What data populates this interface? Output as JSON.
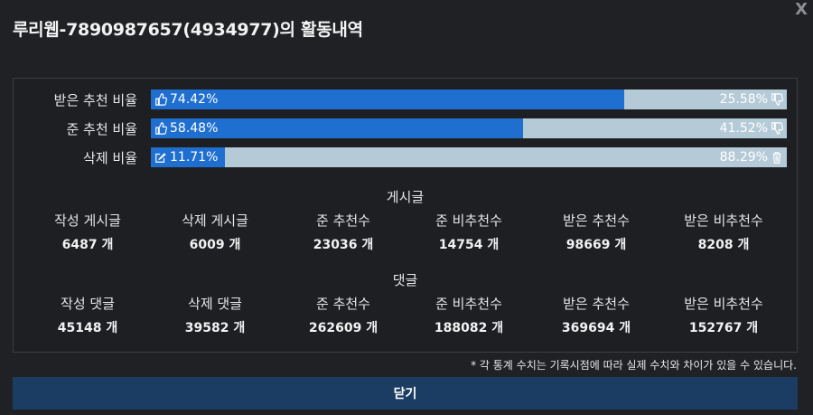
{
  "title": "루리웹-7890987657(4934977)의 활동내역",
  "close_label": "X",
  "ratios": [
    {
      "label": "받은 추천 비율",
      "left_text": "74.42%",
      "right_text": "25.58%",
      "fill_percent": 74.42,
      "left_icon": "thumbs-up-icon",
      "right_icon": "thumbs-down-icon"
    },
    {
      "label": "준 추천 비율",
      "left_text": "58.48%",
      "right_text": "41.52%",
      "fill_percent": 58.48,
      "left_icon": "thumbs-up-icon",
      "right_icon": "thumbs-down-icon"
    },
    {
      "label": "삭제 비율",
      "left_text": "11.71%",
      "right_text": "88.29%",
      "fill_percent": 11.71,
      "left_icon": "edit-icon",
      "right_icon": "trash-icon"
    }
  ],
  "posts": {
    "title": "게시글",
    "stats": [
      {
        "label": "작성 게시글",
        "value": "6487 개"
      },
      {
        "label": "삭제 게시글",
        "value": "6009 개"
      },
      {
        "label": "준 추천수",
        "value": "23036 개"
      },
      {
        "label": "준 비추천수",
        "value": "14754 개"
      },
      {
        "label": "받은 추천수",
        "value": "98669 개"
      },
      {
        "label": "받은 비추천수",
        "value": "8208 개"
      }
    ]
  },
  "comments": {
    "title": "댓글",
    "stats": [
      {
        "label": "작성 댓글",
        "value": "45148 개"
      },
      {
        "label": "삭제 댓글",
        "value": "39582 개"
      },
      {
        "label": "준 추천수",
        "value": "262609 개"
      },
      {
        "label": "준 비추천수",
        "value": "188082 개"
      },
      {
        "label": "받은 추천수",
        "value": "369694 개"
      },
      {
        "label": "받은 비추천수",
        "value": "152767 개"
      }
    ]
  },
  "note": "* 각 통계 수치는 기록시점에 따라 실제 수치와 차이가 있을 수 있습니다.",
  "close_button_label": "닫기",
  "colors": {
    "bar_fill": "#1f6fd1",
    "bar_track": "#b5cad7",
    "button_bg": "#1c3d63"
  }
}
